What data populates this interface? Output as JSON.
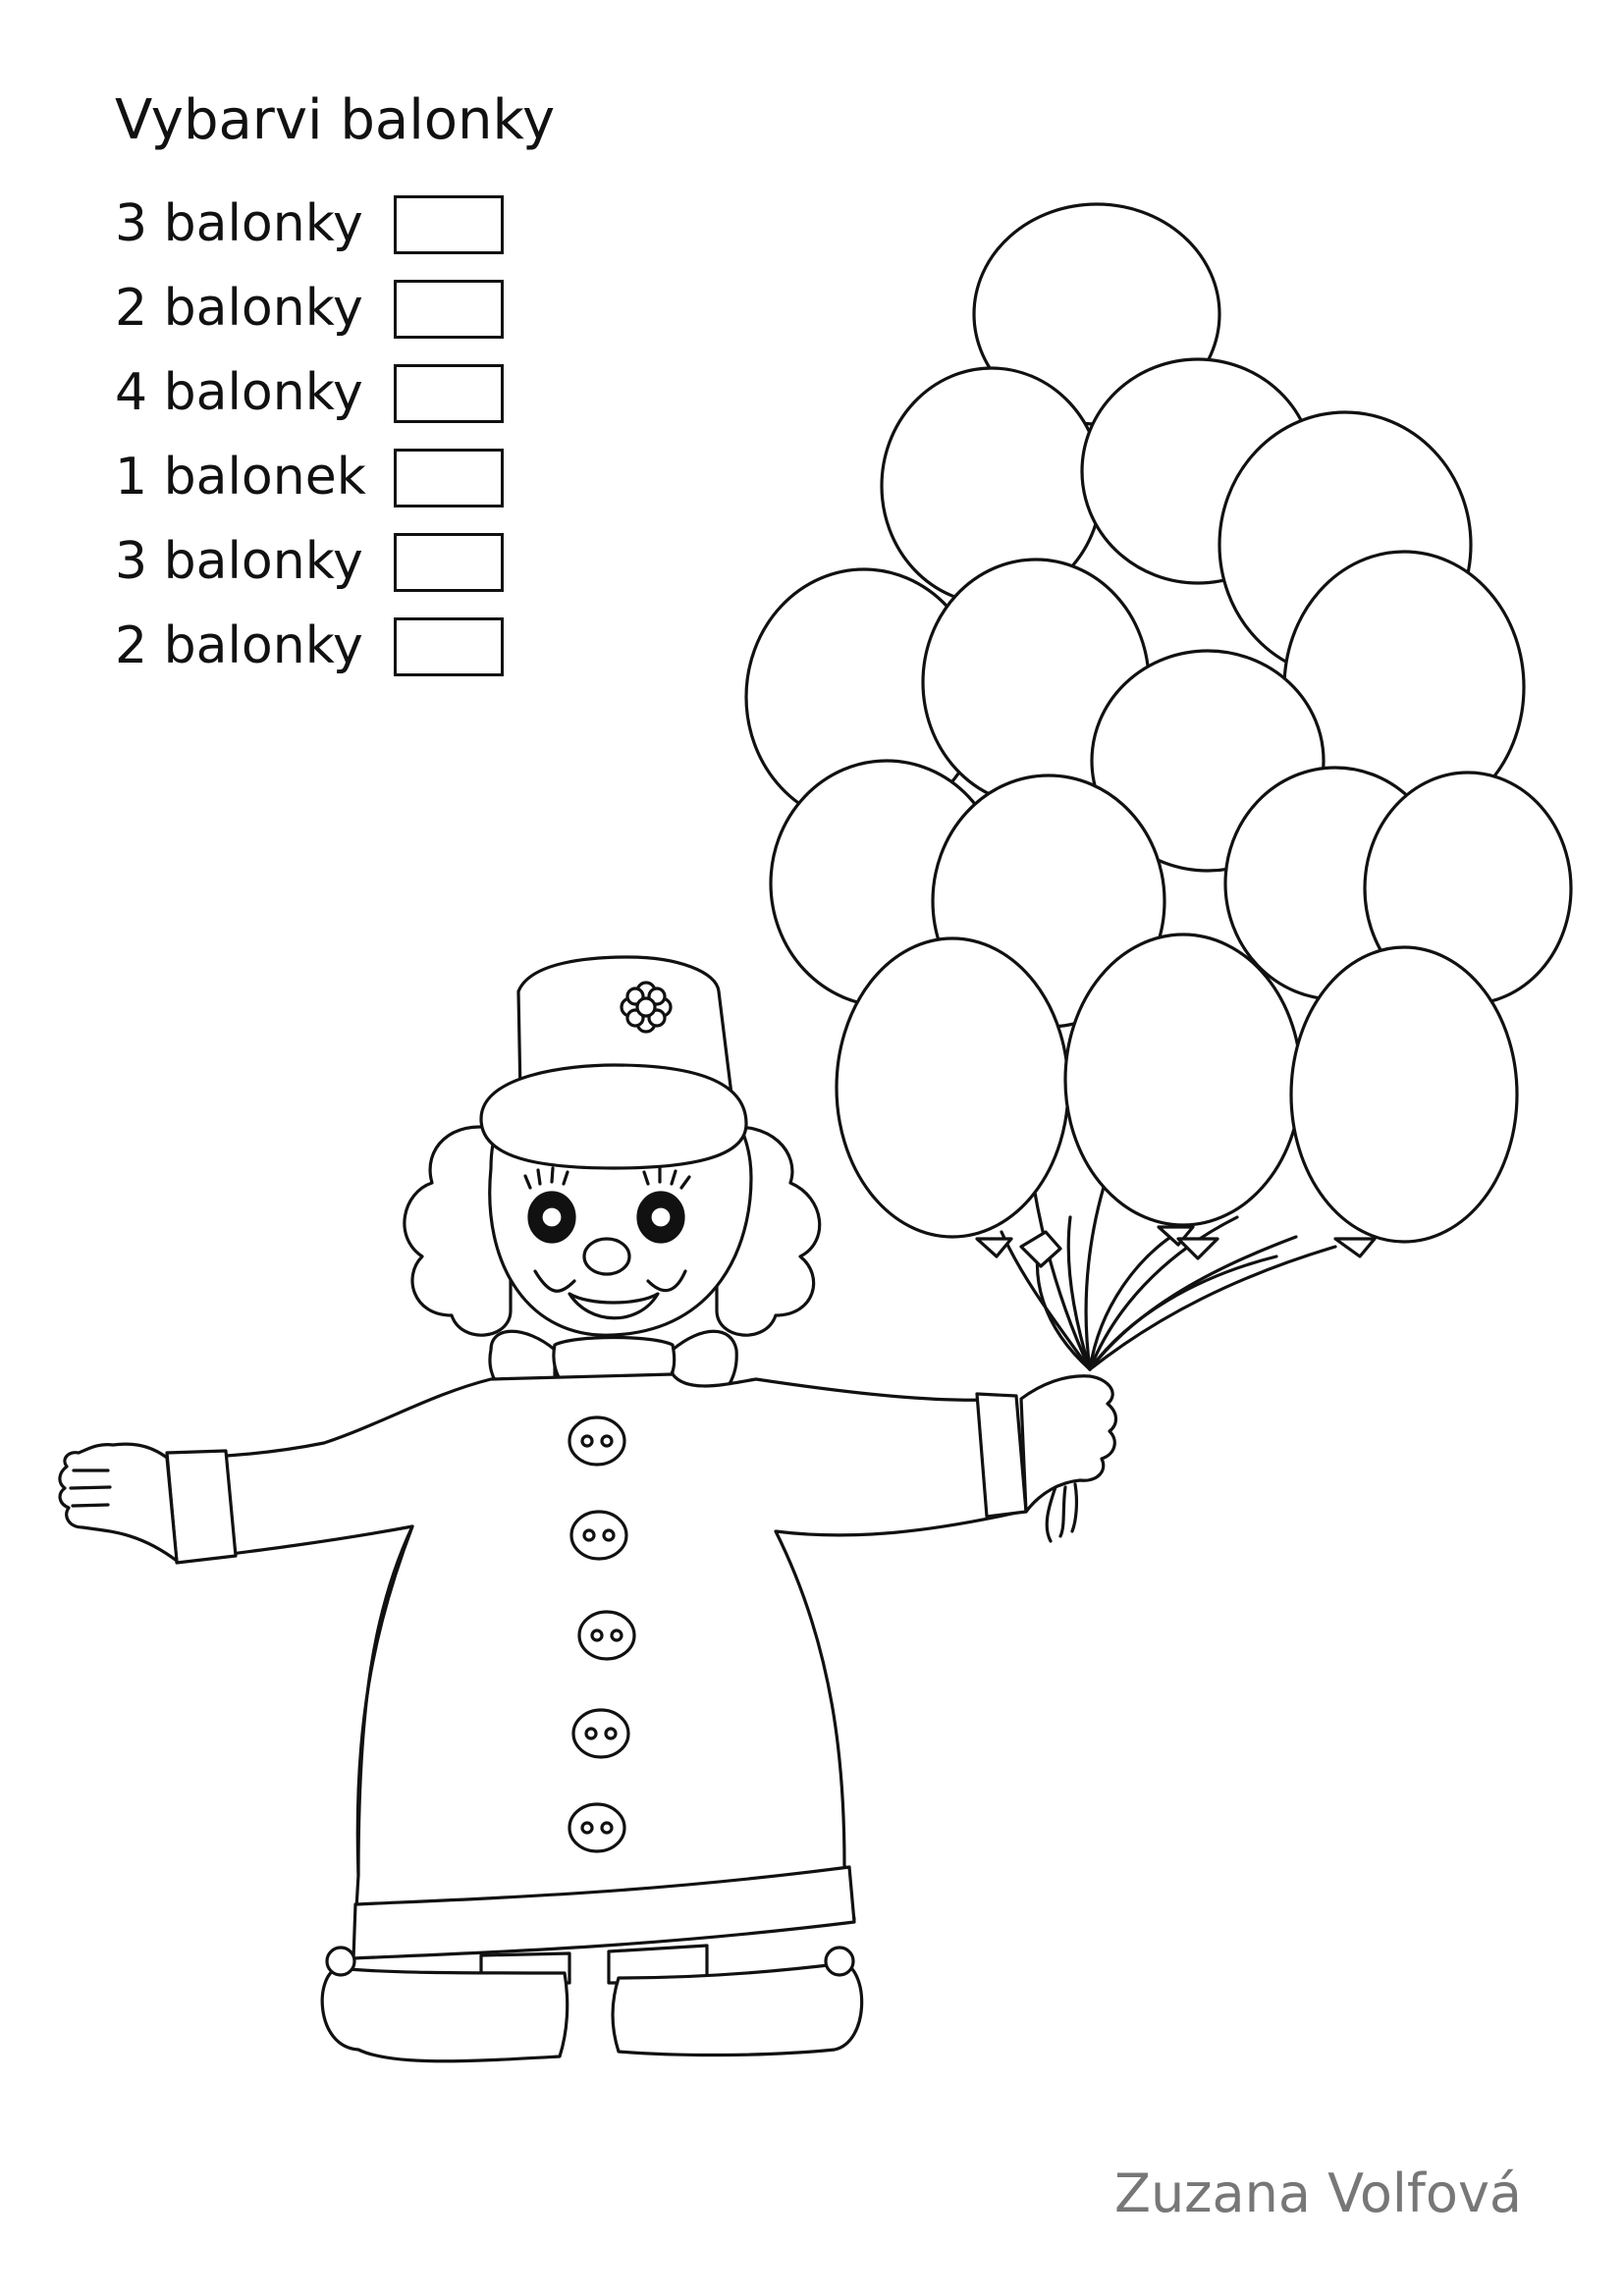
{
  "worksheet": {
    "title": "Vybarvi balonky",
    "legend": [
      {
        "label": "3 balonky",
        "count": 3
      },
      {
        "label": "2 balonky",
        "count": 2
      },
      {
        "label": "4 balonky",
        "count": 4
      },
      {
        "label": "1 balonek",
        "count": 1
      },
      {
        "label": "3 balonky",
        "count": 3
      },
      {
        "label": "2 balonky",
        "count": 2
      }
    ],
    "author": "Zuzana Volfová"
  },
  "illustration": {
    "balloon_count": 15,
    "button_count": 5
  },
  "colors": {
    "line": "#111111",
    "author_text": "#777777",
    "background": "#ffffff"
  }
}
